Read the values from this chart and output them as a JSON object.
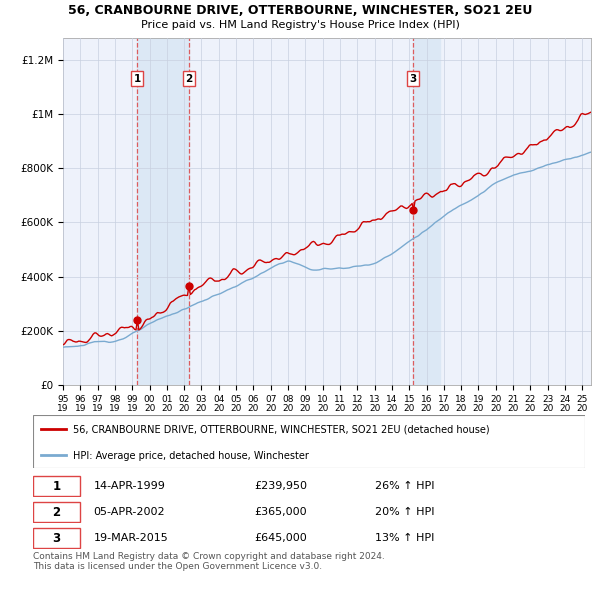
{
  "title": "56, CRANBOURNE DRIVE, OTTERBOURNE, WINCHESTER, SO21 2EU",
  "subtitle": "Price paid vs. HM Land Registry's House Price Index (HPI)",
  "ylabel_ticks": [
    "£0",
    "£200K",
    "£400K",
    "£600K",
    "£800K",
    "£1M",
    "£1.2M"
  ],
  "ytick_values": [
    0,
    200000,
    400000,
    600000,
    800000,
    1000000,
    1200000
  ],
  "ylim": [
    0,
    1280000
  ],
  "xlim_start": 1995.0,
  "xlim_end": 2025.5,
  "sale_color": "#cc0000",
  "hpi_color": "#7aaad0",
  "sale_dates": [
    1999.29,
    2002.27,
    2015.22
  ],
  "sale_prices": [
    239950,
    365000,
    645000
  ],
  "sale_labels": [
    "1",
    "2",
    "3"
  ],
  "vline_color": "#dd4444",
  "shade_color": "#dce8f5",
  "legend_entries": [
    "56, CRANBOURNE DRIVE, OTTERBOURNE, WINCHESTER, SO21 2EU (detached house)",
    "HPI: Average price, detached house, Winchester"
  ],
  "table_data": [
    {
      "num": "1",
      "date": "14-APR-1999",
      "price": "£239,950",
      "hpi": "26% ↑ HPI"
    },
    {
      "num": "2",
      "date": "05-APR-2002",
      "price": "£365,000",
      "hpi": "20% ↑ HPI"
    },
    {
      "num": "3",
      "date": "19-MAR-2015",
      "price": "£645,000",
      "hpi": "13% ↑ HPI"
    }
  ],
  "footer": "Contains HM Land Registry data © Crown copyright and database right 2024.\nThis data is licensed under the Open Government Licence v3.0.",
  "background_color": "#ffffff",
  "plot_bg_color": "#eef2fb",
  "grid_color": "#c8d0e0"
}
